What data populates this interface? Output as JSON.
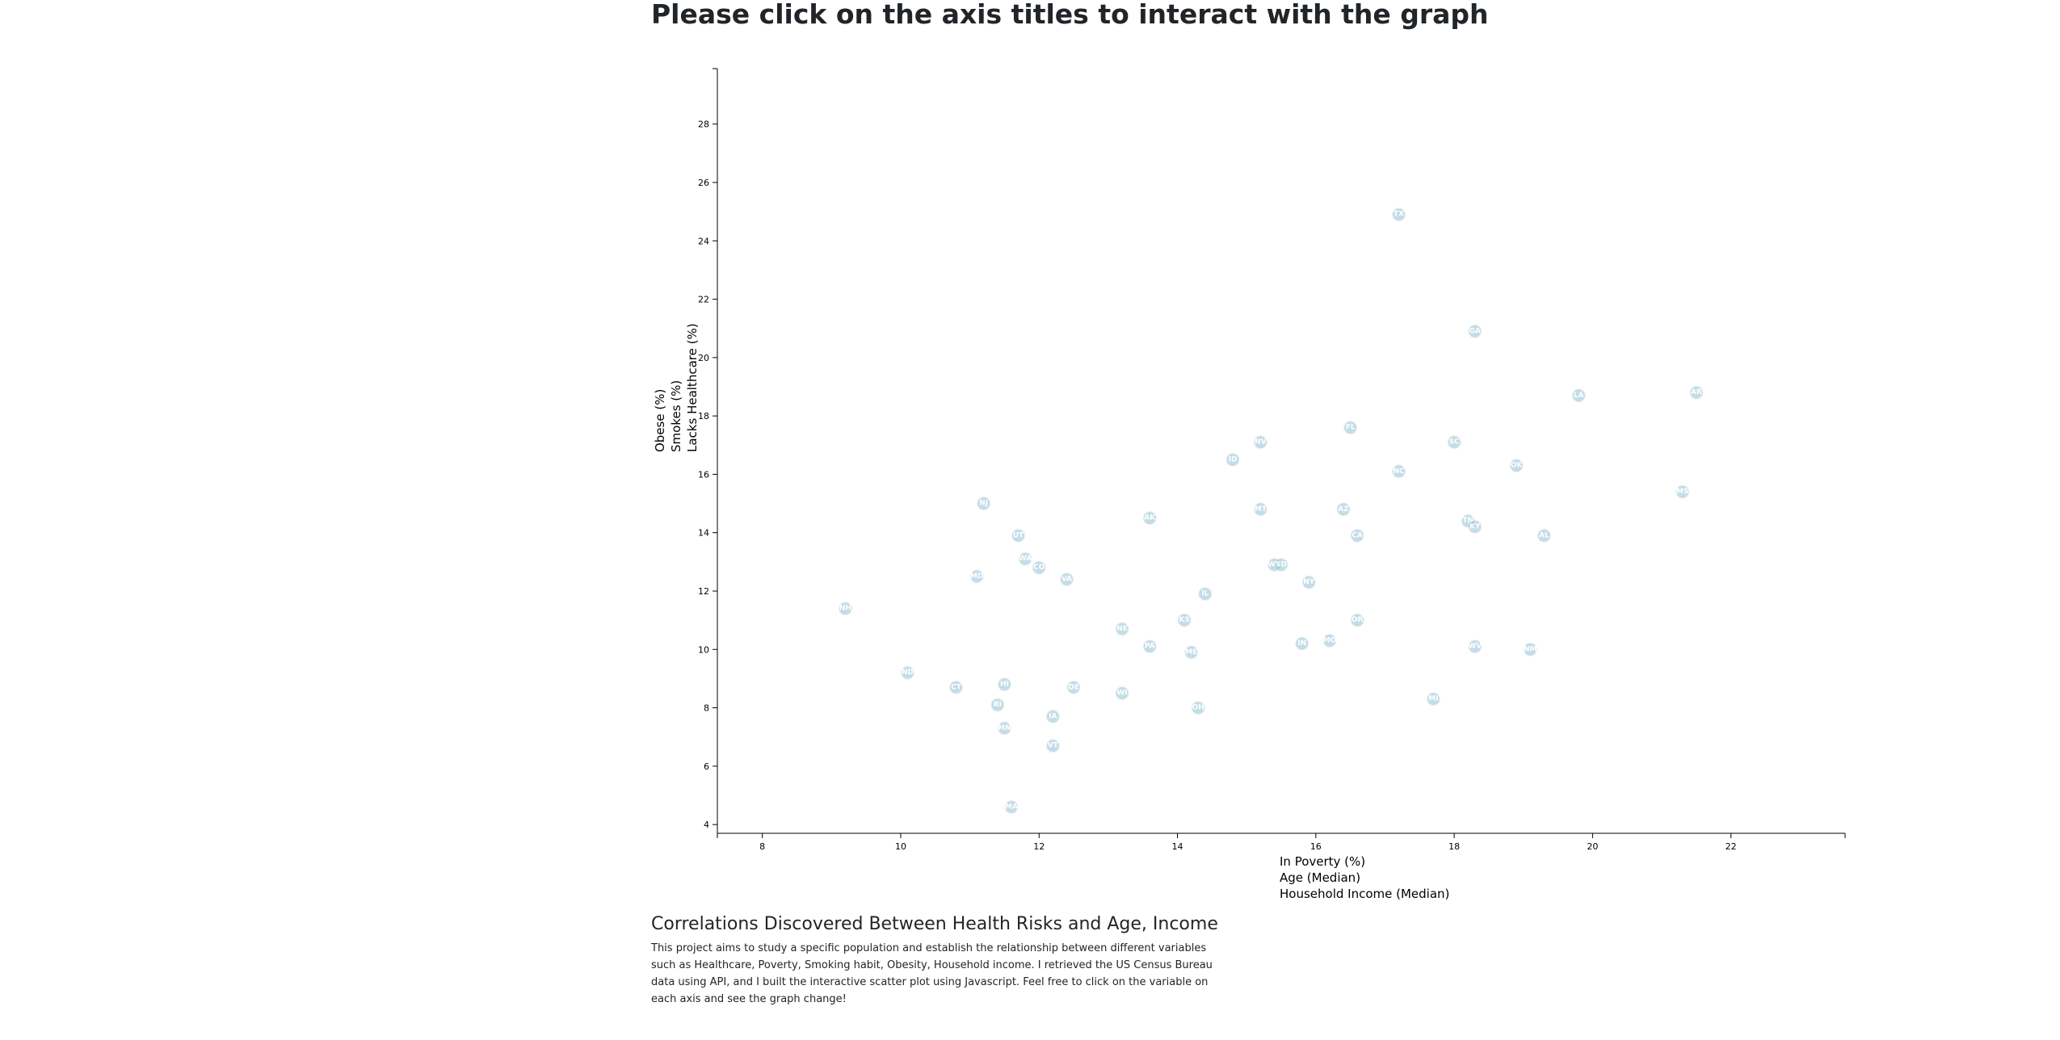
{
  "page": {
    "heading": "Please click on the axis titles to interact with the graph",
    "analysis_title": "Correlations Discovered Between Health Risks and Age, Income",
    "analysis_text": "This project aims to study a specific population and establish the relationship between different variables such as Healthcare, Poverty, Smoking habit, Obesity, Household income. I retrieved the US Census Bureau data using API, and I built the interactive scatter plot using Javascript. Feel free to click on the variable on each axis and see the graph change!"
  },
  "colors": {
    "circle_fill": "#89bdd3",
    "circle_stroke": "#e3e3e3",
    "label_text": "#ffffff"
  },
  "chart_data": {
    "type": "scatter",
    "title": "",
    "x_axis_options": [
      "In Poverty (%)",
      "Age (Median)",
      "Household Income (Median)"
    ],
    "y_axis_options": [
      "Lacks Healthcare (%)",
      "Smokes (%)",
      "Obese (%)"
    ],
    "active_x": "In Poverty (%)",
    "active_y": "Lacks Healthcare (%)",
    "xlim": [
      7.35,
      23.65
    ],
    "ylim": [
      3.7,
      29.9
    ],
    "x_ticks": [
      8,
      10,
      12,
      14,
      16,
      18,
      20,
      22
    ],
    "y_ticks": [
      4,
      6,
      8,
      10,
      12,
      14,
      16,
      18,
      20,
      22,
      24,
      26,
      28
    ],
    "grid": false,
    "legend": "none",
    "points": [
      {
        "label": "TX",
        "x": 17.2,
        "y": 24.9
      },
      {
        "label": "GA",
        "x": 18.3,
        "y": 20.9
      },
      {
        "label": "AR",
        "x": 21.5,
        "y": 18.8
      },
      {
        "label": "LA",
        "x": 19.8,
        "y": 18.7
      },
      {
        "label": "FL",
        "x": 16.5,
        "y": 17.6
      },
      {
        "label": "NV",
        "x": 15.2,
        "y": 17.1
      },
      {
        "label": "SC",
        "x": 18.0,
        "y": 17.1
      },
      {
        "label": "ID",
        "x": 14.8,
        "y": 16.5
      },
      {
        "label": "OK",
        "x": 18.9,
        "y": 16.3
      },
      {
        "label": "NC",
        "x": 17.2,
        "y": 16.1
      },
      {
        "label": "MS",
        "x": 21.3,
        "y": 15.4
      },
      {
        "label": "NJ",
        "x": 11.2,
        "y": 15.0
      },
      {
        "label": "AZ",
        "x": 16.4,
        "y": 14.8
      },
      {
        "label": "MT",
        "x": 15.2,
        "y": 14.8
      },
      {
        "label": "AK",
        "x": 13.6,
        "y": 14.5
      },
      {
        "label": "TN",
        "x": 18.2,
        "y": 14.4
      },
      {
        "label": "KY",
        "x": 18.3,
        "y": 14.2
      },
      {
        "label": "UT",
        "x": 11.7,
        "y": 13.9
      },
      {
        "label": "CA",
        "x": 16.6,
        "y": 13.9
      },
      {
        "label": "AL",
        "x": 19.3,
        "y": 13.9
      },
      {
        "label": "WA",
        "x": 11.8,
        "y": 13.1
      },
      {
        "label": "CO",
        "x": 12.0,
        "y": 12.8
      },
      {
        "label": "WY",
        "x": 15.4,
        "y": 12.9
      },
      {
        "label": "SD",
        "x": 15.5,
        "y": 12.9
      },
      {
        "label": "MD",
        "x": 11.1,
        "y": 12.5
      },
      {
        "label": "VA",
        "x": 12.4,
        "y": 12.4
      },
      {
        "label": "NY",
        "x": 15.9,
        "y": 12.3
      },
      {
        "label": "IL",
        "x": 14.4,
        "y": 11.9
      },
      {
        "label": "NH",
        "x": 9.2,
        "y": 11.4
      },
      {
        "label": "OR",
        "x": 16.6,
        "y": 11.0
      },
      {
        "label": "KS",
        "x": 14.1,
        "y": 11.0
      },
      {
        "label": "NE",
        "x": 13.2,
        "y": 10.7
      },
      {
        "label": "IN",
        "x": 15.8,
        "y": 10.2
      },
      {
        "label": "MO",
        "x": 16.2,
        "y": 10.3
      },
      {
        "label": "PA",
        "x": 13.6,
        "y": 10.1
      },
      {
        "label": "WV",
        "x": 18.3,
        "y": 10.1
      },
      {
        "label": "NM",
        "x": 19.1,
        "y": 10.0
      },
      {
        "label": "ME",
        "x": 14.2,
        "y": 9.9
      },
      {
        "label": "ND",
        "x": 10.1,
        "y": 9.2
      },
      {
        "label": "CT",
        "x": 10.8,
        "y": 8.7
      },
      {
        "label": "DE",
        "x": 12.5,
        "y": 8.7
      },
      {
        "label": "HI",
        "x": 11.5,
        "y": 8.8
      },
      {
        "label": "WI",
        "x": 13.2,
        "y": 8.5
      },
      {
        "label": "MI",
        "x": 17.7,
        "y": 8.3
      },
      {
        "label": "RI",
        "x": 11.4,
        "y": 8.1
      },
      {
        "label": "OH",
        "x": 14.3,
        "y": 8.0
      },
      {
        "label": "IA",
        "x": 12.2,
        "y": 7.7
      },
      {
        "label": "MN",
        "x": 11.5,
        "y": 7.3
      },
      {
        "label": "VT",
        "x": 12.2,
        "y": 6.7
      },
      {
        "label": "MA",
        "x": 11.6,
        "y": 4.6
      }
    ]
  }
}
